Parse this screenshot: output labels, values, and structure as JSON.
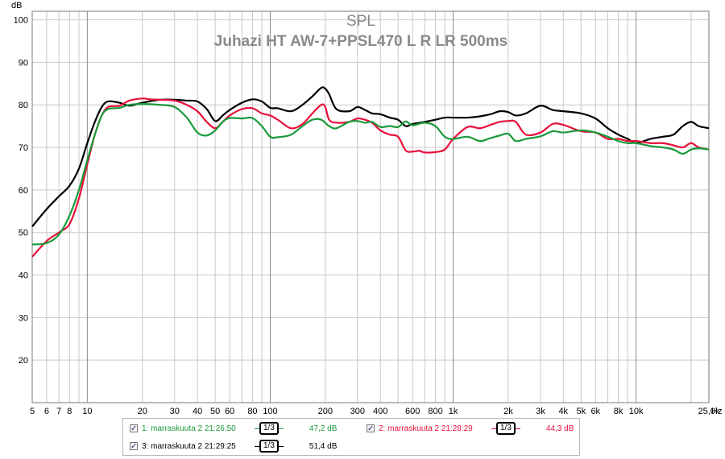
{
  "chart_data": {
    "type": "line",
    "title": "SPL",
    "subtitle": "Juhazi HT AW-7+PPSL470 L R LR 500ms",
    "ylabel": "dB",
    "xunit": "Hz",
    "x_scale": "log",
    "xlim": [
      5,
      25000
    ],
    "ylim": [
      10,
      102
    ],
    "grid": true,
    "legend_position": "bottom",
    "y_ticks": [
      {
        "value": 100,
        "label": "100"
      },
      {
        "value": 90,
        "label": "90"
      },
      {
        "value": 80,
        "label": "80"
      },
      {
        "value": 70,
        "label": "70"
      },
      {
        "value": 60,
        "label": "60"
      },
      {
        "value": 50,
        "label": "50"
      },
      {
        "value": 40,
        "label": "40"
      },
      {
        "value": 30,
        "label": "30"
      },
      {
        "value": 20,
        "label": "20"
      }
    ],
    "x_ticks": [
      {
        "value": 5,
        "label": "5"
      },
      {
        "value": 6,
        "label": "6"
      },
      {
        "value": 7,
        "label": "7"
      },
      {
        "value": 8,
        "label": "8"
      },
      {
        "value": 10,
        "label": "10"
      },
      {
        "value": 20,
        "label": "20"
      },
      {
        "value": 30,
        "label": "30"
      },
      {
        "value": 40,
        "label": "40"
      },
      {
        "value": 50,
        "label": "50"
      },
      {
        "value": 60,
        "label": "60"
      },
      {
        "value": 80,
        "label": "80"
      },
      {
        "value": 100,
        "label": "100"
      },
      {
        "value": 200,
        "label": "200"
      },
      {
        "value": 300,
        "label": "300"
      },
      {
        "value": 400,
        "label": "400"
      },
      {
        "value": 600,
        "label": "600"
      },
      {
        "value": 800,
        "label": "800"
      },
      {
        "value": 1000,
        "label": "1k"
      },
      {
        "value": 2000,
        "label": "2k"
      },
      {
        "value": 3000,
        "label": "3k"
      },
      {
        "value": 4000,
        "label": "4k"
      },
      {
        "value": 5000,
        "label": "5k"
      },
      {
        "value": 6000,
        "label": "6k"
      },
      {
        "value": 8000,
        "label": "8k"
      },
      {
        "value": 10000,
        "label": "10k"
      },
      {
        "value": 25000,
        "label": "25,0k"
      }
    ],
    "series": [
      {
        "name": "1: marraskuuta 2 21:26:50",
        "color": "#1a9a3a",
        "smoothing": "1/3",
        "level": "47,2 dB",
        "points": [
          [
            5,
            47.2
          ],
          [
            6,
            47.5
          ],
          [
            7,
            49.5
          ],
          [
            8,
            54
          ],
          [
            9,
            60
          ],
          [
            10,
            67
          ],
          [
            11,
            73
          ],
          [
            12,
            77.5
          ],
          [
            13,
            79
          ],
          [
            15,
            79.3
          ],
          [
            17,
            80
          ],
          [
            20,
            80.2
          ],
          [
            25,
            80
          ],
          [
            30,
            79.5
          ],
          [
            35,
            77
          ],
          [
            40,
            73.5
          ],
          [
            45,
            72.8
          ],
          [
            50,
            74
          ],
          [
            55,
            76
          ],
          [
            60,
            76.9
          ],
          [
            70,
            76.8
          ],
          [
            80,
            76.9
          ],
          [
            90,
            75
          ],
          [
            100,
            72.5
          ],
          [
            110,
            72.4
          ],
          [
            130,
            73
          ],
          [
            150,
            75
          ],
          [
            170,
            76.5
          ],
          [
            190,
            76.5
          ],
          [
            210,
            75
          ],
          [
            230,
            74.5
          ],
          [
            270,
            76
          ],
          [
            300,
            76.2
          ],
          [
            330,
            75.8
          ],
          [
            360,
            76
          ],
          [
            400,
            74.8
          ],
          [
            450,
            75
          ],
          [
            500,
            74.8
          ],
          [
            550,
            76.1
          ],
          [
            600,
            75.2
          ],
          [
            700,
            75.8
          ],
          [
            800,
            75
          ],
          [
            900,
            72.5
          ],
          [
            1000,
            72
          ],
          [
            1200,
            72.5
          ],
          [
            1400,
            71.5
          ],
          [
            1600,
            72.2
          ],
          [
            1800,
            72.8
          ],
          [
            2000,
            73.2
          ],
          [
            2200,
            71.5
          ],
          [
            2500,
            72
          ],
          [
            3000,
            72.6
          ],
          [
            3500,
            73.8
          ],
          [
            4000,
            73.5
          ],
          [
            5000,
            74
          ],
          [
            6000,
            73.5
          ],
          [
            7000,
            72.5
          ],
          [
            8000,
            71.5
          ],
          [
            9000,
            71
          ],
          [
            10000,
            71
          ],
          [
            12000,
            70.3
          ],
          [
            14000,
            70
          ],
          [
            16000,
            69.5
          ],
          [
            18000,
            68.5
          ],
          [
            20000,
            69.5
          ],
          [
            22000,
            69.8
          ],
          [
            25000,
            69.5
          ]
        ]
      },
      {
        "name": "2: marraskuuta 2 21:28:29",
        "color": "#e8103a",
        "smoothing": "1/3",
        "level": "44,3 dB",
        "points": [
          [
            5,
            44.3
          ],
          [
            6,
            48
          ],
          [
            7,
            50
          ],
          [
            8,
            52
          ],
          [
            9,
            58
          ],
          [
            10,
            66
          ],
          [
            11,
            73
          ],
          [
            12,
            77.5
          ],
          [
            13,
            79.5
          ],
          [
            15,
            79.8
          ],
          [
            17,
            81
          ],
          [
            20,
            81.5
          ],
          [
            22,
            81.3
          ],
          [
            25,
            81.2
          ],
          [
            30,
            81
          ],
          [
            35,
            80
          ],
          [
            40,
            78.5
          ],
          [
            45,
            76
          ],
          [
            50,
            74.5
          ],
          [
            55,
            76
          ],
          [
            60,
            77.5
          ],
          [
            70,
            79
          ],
          [
            80,
            79.2
          ],
          [
            90,
            78
          ],
          [
            100,
            77.5
          ],
          [
            110,
            76.5
          ],
          [
            130,
            74.5
          ],
          [
            150,
            75.5
          ],
          [
            170,
            78
          ],
          [
            190,
            80
          ],
          [
            200,
            79.5
          ],
          [
            210,
            76.5
          ],
          [
            230,
            75.8
          ],
          [
            270,
            76
          ],
          [
            300,
            76.8
          ],
          [
            330,
            76.5
          ],
          [
            360,
            75.8
          ],
          [
            400,
            74
          ],
          [
            450,
            73
          ],
          [
            500,
            72.5
          ],
          [
            550,
            69.3
          ],
          [
            600,
            69
          ],
          [
            650,
            69.2
          ],
          [
            700,
            68.8
          ],
          [
            800,
            68.9
          ],
          [
            900,
            69.5
          ],
          [
            1000,
            72
          ],
          [
            1200,
            74.8
          ],
          [
            1400,
            74.5
          ],
          [
            1600,
            75.3
          ],
          [
            1800,
            76
          ],
          [
            2000,
            76.2
          ],
          [
            2200,
            76
          ],
          [
            2500,
            73
          ],
          [
            3000,
            73.5
          ],
          [
            3500,
            75.5
          ],
          [
            4000,
            75.3
          ],
          [
            5000,
            73.8
          ],
          [
            6000,
            73.5
          ],
          [
            7000,
            72
          ],
          [
            8000,
            72
          ],
          [
            9000,
            71.5
          ],
          [
            10000,
            71.5
          ],
          [
            12000,
            71
          ],
          [
            14000,
            71
          ],
          [
            16000,
            70.5
          ],
          [
            18000,
            70
          ],
          [
            20000,
            71
          ],
          [
            22000,
            70
          ],
          [
            25000,
            69.5
          ]
        ]
      },
      {
        "name": "3: marraskuuta 2 21:29:25",
        "color": "#000000",
        "smoothing": "1/3",
        "level": "51,4 dB",
        "points": [
          [
            5,
            51.4
          ],
          [
            6,
            55.5
          ],
          [
            7,
            58.5
          ],
          [
            8,
            61
          ],
          [
            9,
            65
          ],
          [
            10,
            71
          ],
          [
            11,
            76
          ],
          [
            12,
            79.5
          ],
          [
            13,
            80.8
          ],
          [
            15,
            80.5
          ],
          [
            17,
            79.8
          ],
          [
            20,
            80.5
          ],
          [
            25,
            81.2
          ],
          [
            30,
            81.2
          ],
          [
            35,
            81
          ],
          [
            40,
            80.8
          ],
          [
            45,
            79
          ],
          [
            50,
            76.2
          ],
          [
            55,
            77.5
          ],
          [
            60,
            78.8
          ],
          [
            70,
            80.5
          ],
          [
            80,
            81.3
          ],
          [
            90,
            80.8
          ],
          [
            100,
            79.3
          ],
          [
            110,
            79.2
          ],
          [
            130,
            78.5
          ],
          [
            150,
            80
          ],
          [
            170,
            82
          ],
          [
            190,
            84
          ],
          [
            200,
            83.8
          ],
          [
            210,
            82.5
          ],
          [
            230,
            79
          ],
          [
            270,
            78.5
          ],
          [
            300,
            79.5
          ],
          [
            330,
            78.8
          ],
          [
            360,
            78
          ],
          [
            400,
            77.8
          ],
          [
            450,
            77
          ],
          [
            500,
            76.5
          ],
          [
            550,
            75
          ],
          [
            600,
            75.5
          ],
          [
            700,
            76
          ],
          [
            800,
            76.5
          ],
          [
            900,
            77
          ],
          [
            1000,
            77
          ],
          [
            1200,
            77
          ],
          [
            1400,
            77.3
          ],
          [
            1600,
            77.8
          ],
          [
            1800,
            78.5
          ],
          [
            2000,
            78.3
          ],
          [
            2200,
            77.5
          ],
          [
            2500,
            78
          ],
          [
            3000,
            79.8
          ],
          [
            3500,
            78.8
          ],
          [
            4000,
            78.5
          ],
          [
            5000,
            78
          ],
          [
            6000,
            76.8
          ],
          [
            7000,
            74.5
          ],
          [
            8000,
            73
          ],
          [
            9000,
            72
          ],
          [
            10000,
            71
          ],
          [
            12000,
            72
          ],
          [
            14000,
            72.5
          ],
          [
            16000,
            73
          ],
          [
            18000,
            75
          ],
          [
            20000,
            76
          ],
          [
            22000,
            75
          ],
          [
            25000,
            74.5
          ]
        ]
      }
    ]
  }
}
